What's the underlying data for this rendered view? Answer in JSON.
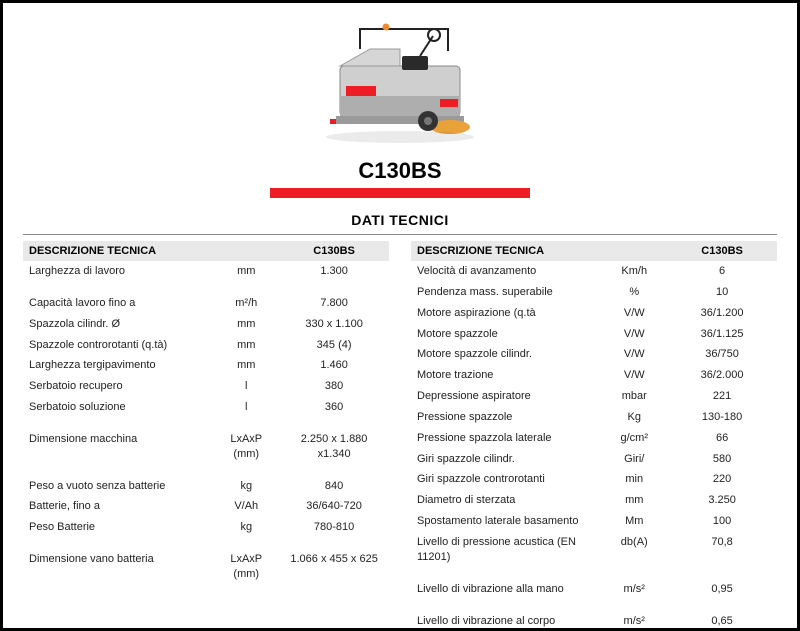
{
  "product": {
    "title": "C130BS",
    "accent_color": "#ee1c25"
  },
  "section_title": "DATI TECNICI",
  "header": {
    "desc": "DESCRIZIONE TECNICA",
    "model": "C130BS"
  },
  "left_rows": [
    {
      "desc": "Larghezza di lavoro",
      "unit": "mm",
      "val": "1.300",
      "spacer_after": true
    },
    {
      "desc": "Capacità lavoro fino a",
      "unit": "m²/h",
      "val": "7.800"
    },
    {
      "desc": "Spazzola cilindr. Ø",
      "unit": "mm",
      "val": "330 x 1.100"
    },
    {
      "desc": "Spazzole controrotanti (q.tà)",
      "unit": "mm",
      "val": "345 (4)"
    },
    {
      "desc": "Larghezza tergipavimento",
      "unit": "mm",
      "val": "1.460"
    },
    {
      "desc": "Serbatoio recupero",
      "unit": "l",
      "val": "380"
    },
    {
      "desc": "Serbatoio soluzione",
      "unit": "l",
      "val": "360",
      "spacer_after": true
    },
    {
      "desc": "Dimensione macchina",
      "unit": "LxAxP (mm)",
      "val": "2.250 x 1.880 x1.340",
      "spacer_after": true
    },
    {
      "desc": "Peso a vuoto senza batterie",
      "unit": "kg",
      "val": "840"
    },
    {
      "desc": "Batterie, fino a",
      "unit": "V/Ah",
      "val": "36/640-720"
    },
    {
      "desc": "Peso Batterie",
      "unit": "kg",
      "val": "780-810",
      "spacer_after": true
    },
    {
      "desc": "Dimensione vano batteria",
      "unit": "LxAxP (mm)",
      "val": "1.066 x 455 x 625"
    }
  ],
  "right_rows": [
    {
      "desc": "Velocità di avanzamento",
      "unit": "Km/h",
      "val": "6"
    },
    {
      "desc": "Pendenza mass. superabile",
      "unit": "%",
      "val": "10"
    },
    {
      "desc": "Motore aspirazione (q.tà",
      "unit": "V/W",
      "val": "36/1.200"
    },
    {
      "desc": "Motore spazzole",
      "unit": "V/W",
      "val": "36/1.125"
    },
    {
      "desc": "Motore spazzole cilindr.",
      "unit": "V/W",
      "val": "36/750"
    },
    {
      "desc": "Motore trazione",
      "unit": "V/W",
      "val": "36/2.000"
    },
    {
      "desc": "Depressione aspiratore",
      "unit": "mbar",
      "val": "221"
    },
    {
      "desc": "Pressione spazzole",
      "unit": "Kg",
      "val": "130-180"
    },
    {
      "desc": "Pressione spazzola laterale",
      "unit": "g/cm²",
      "val": "66"
    },
    {
      "desc": "Giri spazzole cilindr.",
      "unit": "Giri/",
      "val": "580"
    },
    {
      "desc": "Giri spazzole controrotanti",
      "unit": "min",
      "val": "220"
    },
    {
      "desc": "Diametro di sterzata",
      "unit": "mm",
      "val": "3.250"
    },
    {
      "desc": "Spostamento laterale basamento",
      "unit": "Mm",
      "val": "100"
    },
    {
      "desc": "Livello di pressione acustica (EN 11201)",
      "unit": "db(A)",
      "val": "70,8"
    },
    {
      "desc": "Livello di vibrazione alla mano",
      "unit": "m/s²",
      "val": "0,95",
      "spacer_before": true
    },
    {
      "desc": "Livello di vibrazione al corpo",
      "unit": "m/s²",
      "val": "0,65",
      "spacer_before": true
    }
  ],
  "image_colors": {
    "body": "#cfcfcf",
    "body_dark": "#8a8a8a",
    "trim": "#222",
    "red": "#ee1c25",
    "orange": "#e9a13a",
    "beacon": "#f08c2e",
    "wheel": "#333"
  }
}
